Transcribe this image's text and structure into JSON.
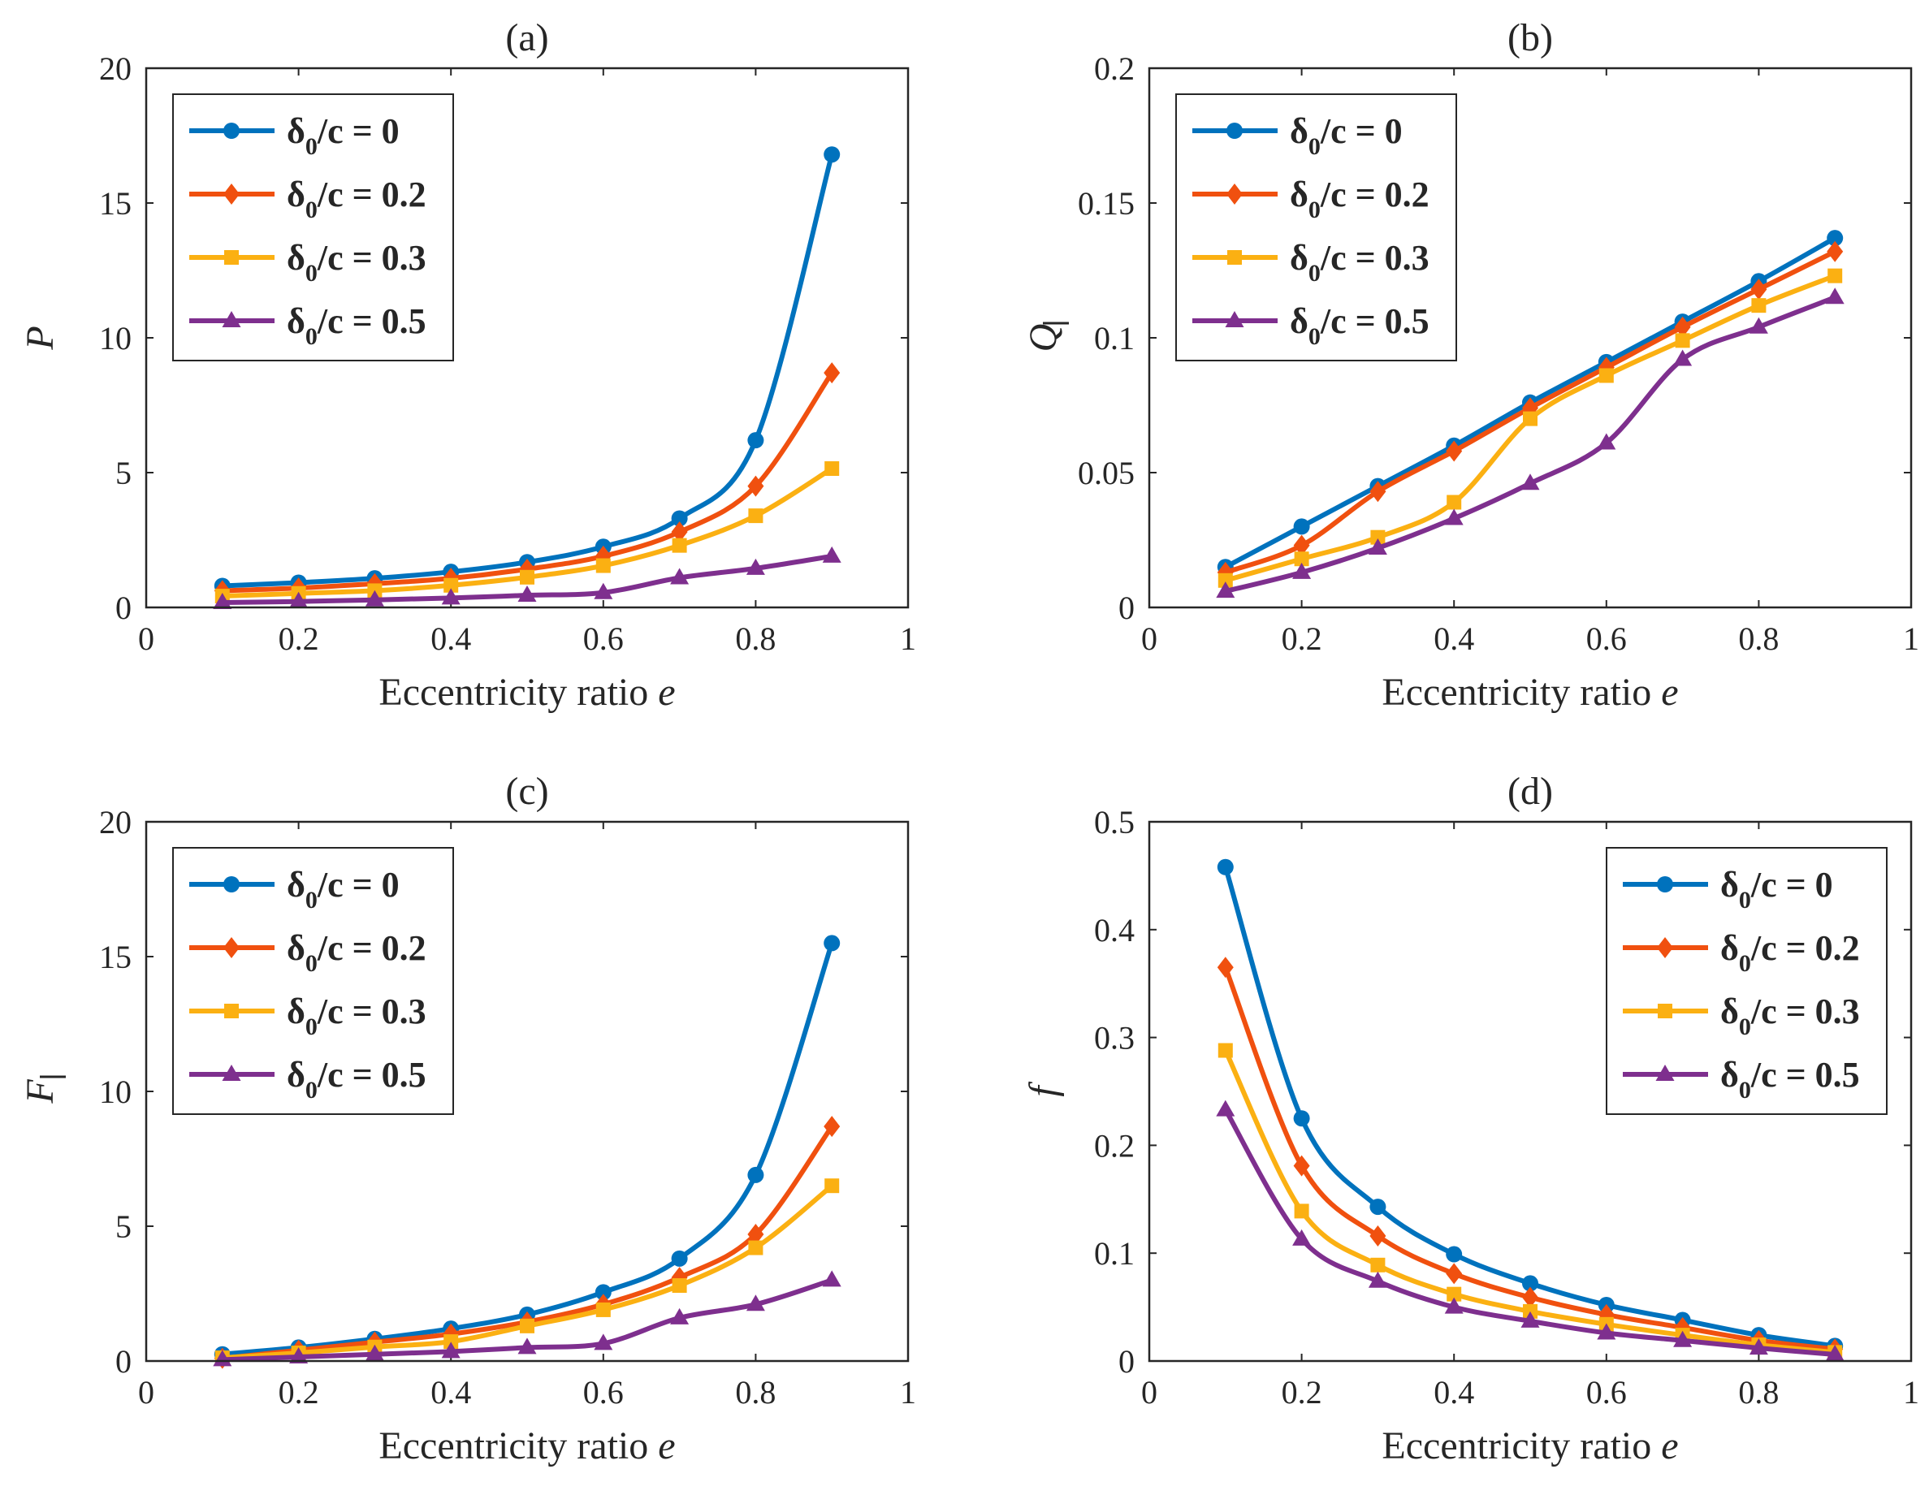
{
  "figure": {
    "legend_entries": [
      {
        "symbol": "δ",
        "sub": "0",
        "text": "/c = 0"
      },
      {
        "symbol": "δ",
        "sub": "0",
        "text": "/c = 0.2"
      },
      {
        "symbol": "δ",
        "sub": "0",
        "text": "/c = 0.3"
      },
      {
        "symbol": "δ",
        "sub": "0",
        "text": "/c = 0.5"
      }
    ],
    "series_colors": [
      "#0072BD",
      "#F0500F",
      "#FBB012",
      "#7E2F8E"
    ],
    "markers": [
      "circle",
      "diamond",
      "square",
      "triangle"
    ]
  },
  "chart_data": [
    {
      "type": "line",
      "title": "(a)",
      "xlabel_text": "Eccentricity ratio ",
      "xlabel_var": "e",
      "ylabel": "P",
      "ylabel_bar": false,
      "xlim": [
        0,
        1
      ],
      "ylim": [
        0,
        20
      ],
      "xticks": [
        "0",
        "0.2",
        "0.4",
        "0.6",
        "0.8",
        "1"
      ],
      "yticks": [
        "0",
        "5",
        "10",
        "15",
        "20"
      ],
      "legend_position": "top-left",
      "x": [
        0.1,
        0.2,
        0.3,
        0.4,
        0.5,
        0.6,
        0.7,
        0.8,
        0.9
      ],
      "series": [
        {
          "name": "δ0/c = 0",
          "values": [
            0.8,
            0.92,
            1.08,
            1.32,
            1.68,
            2.25,
            3.3,
            6.2,
            16.8
          ]
        },
        {
          "name": "δ0/c = 0.2",
          "values": [
            0.62,
            0.72,
            0.88,
            1.08,
            1.42,
            1.9,
            2.8,
            4.5,
            8.7
          ]
        },
        {
          "name": "δ0/c = 0.3",
          "values": [
            0.42,
            0.52,
            0.62,
            0.82,
            1.12,
            1.55,
            2.3,
            3.4,
            5.15
          ]
        },
        {
          "name": "δ0/c = 0.5",
          "values": [
            0.18,
            0.22,
            0.28,
            0.35,
            0.45,
            0.55,
            1.1,
            1.45,
            1.9
          ]
        }
      ]
    },
    {
      "type": "line",
      "title": "(b)",
      "xlabel_text": "Eccentricity ratio ",
      "xlabel_var": "e",
      "ylabel": "Q",
      "ylabel_bar": true,
      "xlim": [
        0,
        1
      ],
      "ylim": [
        0,
        0.2
      ],
      "xticks": [
        "0",
        "0.2",
        "0.4",
        "0.6",
        "0.8",
        "1"
      ],
      "yticks": [
        "0",
        "0.05",
        "0.1",
        "0.15",
        "0.2"
      ],
      "legend_position": "top-left",
      "x": [
        0.1,
        0.2,
        0.3,
        0.4,
        0.5,
        0.6,
        0.7,
        0.8,
        0.9
      ],
      "series": [
        {
          "name": "δ0/c = 0",
          "values": [
            0.015,
            0.03,
            0.045,
            0.06,
            0.076,
            0.091,
            0.106,
            0.121,
            0.137
          ]
        },
        {
          "name": "δ0/c = 0.2",
          "values": [
            0.013,
            0.023,
            0.043,
            0.058,
            0.074,
            0.089,
            0.104,
            0.118,
            0.132
          ]
        },
        {
          "name": "δ0/c = 0.3",
          "values": [
            0.01,
            0.018,
            0.026,
            0.039,
            0.07,
            0.086,
            0.099,
            0.112,
            0.123
          ]
        },
        {
          "name": "δ0/c = 0.5",
          "values": [
            0.006,
            0.013,
            0.022,
            0.033,
            0.046,
            0.061,
            0.092,
            0.104,
            0.115
          ]
        }
      ]
    },
    {
      "type": "line",
      "title": "(c)",
      "xlabel_text": "Eccentricity ratio ",
      "xlabel_var": "e",
      "ylabel": "F",
      "ylabel_bar": true,
      "xlim": [
        0,
        1
      ],
      "ylim": [
        0,
        20
      ],
      "xticks": [
        "0",
        "0.2",
        "0.4",
        "0.6",
        "0.8",
        "1"
      ],
      "yticks": [
        "0",
        "5",
        "10",
        "15",
        "20"
      ],
      "legend_position": "top-left",
      "x": [
        0.1,
        0.2,
        0.3,
        0.4,
        0.5,
        0.6,
        0.7,
        0.8,
        0.9
      ],
      "series": [
        {
          "name": "δ0/c = 0",
          "values": [
            0.25,
            0.5,
            0.82,
            1.2,
            1.72,
            2.55,
            3.8,
            6.9,
            15.5
          ]
        },
        {
          "name": "δ0/c = 0.2",
          "values": [
            0.1,
            0.4,
            0.7,
            1.0,
            1.45,
            2.1,
            3.1,
            4.7,
            8.7
          ]
        },
        {
          "name": "δ0/c = 0.3",
          "values": [
            0.12,
            0.3,
            0.52,
            0.72,
            1.3,
            1.9,
            2.8,
            4.2,
            6.5
          ]
        },
        {
          "name": "δ0/c = 0.5",
          "values": [
            0.05,
            0.15,
            0.25,
            0.35,
            0.5,
            0.65,
            1.6,
            2.1,
            3.0
          ]
        }
      ]
    },
    {
      "type": "line",
      "title": "(d)",
      "xlabel_text": "Eccentricity ratio ",
      "xlabel_var": "e",
      "ylabel": "f",
      "ylabel_bar": false,
      "xlim": [
        0,
        1
      ],
      "ylim": [
        0,
        0.5
      ],
      "xticks": [
        "0",
        "0.2",
        "0.4",
        "0.6",
        "0.8",
        "1"
      ],
      "yticks": [
        "0",
        "0.1",
        "0.2",
        "0.3",
        "0.4",
        "0.5"
      ],
      "legend_position": "top-right",
      "x": [
        0.1,
        0.2,
        0.3,
        0.4,
        0.5,
        0.6,
        0.7,
        0.8,
        0.9
      ],
      "series": [
        {
          "name": "δ0/c = 0",
          "values": [
            0.458,
            0.225,
            0.143,
            0.099,
            0.072,
            0.052,
            0.038,
            0.024,
            0.014
          ]
        },
        {
          "name": "δ0/c = 0.2",
          "values": [
            0.365,
            0.181,
            0.116,
            0.081,
            0.059,
            0.043,
            0.031,
            0.019,
            0.011
          ]
        },
        {
          "name": "δ0/c = 0.3",
          "values": [
            0.288,
            0.139,
            0.089,
            0.062,
            0.046,
            0.034,
            0.024,
            0.015,
            0.008
          ]
        },
        {
          "name": "δ0/c = 0.5",
          "values": [
            0.233,
            0.113,
            0.074,
            0.05,
            0.037,
            0.026,
            0.019,
            0.012,
            0.006
          ]
        }
      ]
    }
  ]
}
